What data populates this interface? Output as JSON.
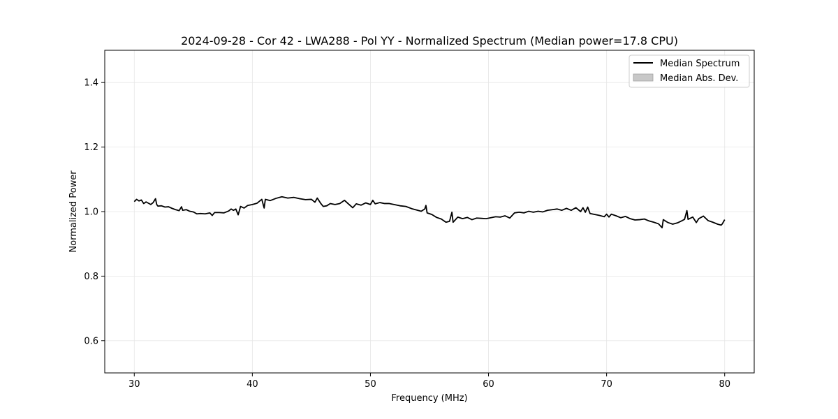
{
  "chart_data": {
    "type": "line",
    "title": "2024-09-28 - Cor 42 - LWA288 - Pol YY - Normalized Spectrum (Median power=17.8 CPU)",
    "xlabel": "Frequency (MHz)",
    "ylabel": "Normalized Power",
    "xlim": [
      27.5,
      82.5
    ],
    "ylim": [
      0.5,
      1.5
    ],
    "x_ticks": [
      30,
      40,
      50,
      60,
      70,
      80
    ],
    "y_ticks": [
      0.6,
      0.8,
      1.0,
      1.2,
      1.4
    ],
    "x_tick_labels": [
      "30",
      "40",
      "50",
      "60",
      "70",
      "80"
    ],
    "y_tick_labels": [
      "0.6",
      "0.8",
      "1.0",
      "1.2",
      "1.4"
    ],
    "grid": true,
    "legend_position": "top-right",
    "legend": [
      {
        "label": "Median Spectrum",
        "kind": "line",
        "color": "#000000"
      },
      {
        "label": "Median Abs. Dev.",
        "kind": "patch",
        "color": "#c8c8c8"
      }
    ],
    "series": [
      {
        "name": "Median Spectrum",
        "color": "#000000",
        "points": [
          [
            30.0,
            1.031
          ],
          [
            30.2,
            1.038
          ],
          [
            30.4,
            1.033
          ],
          [
            30.6,
            1.036
          ],
          [
            30.8,
            1.025
          ],
          [
            31.0,
            1.03
          ],
          [
            31.2,
            1.026
          ],
          [
            31.4,
            1.022
          ],
          [
            31.6,
            1.028
          ],
          [
            31.8,
            1.04
          ],
          [
            31.9,
            1.022
          ],
          [
            32.0,
            1.017
          ],
          [
            32.3,
            1.018
          ],
          [
            32.6,
            1.014
          ],
          [
            32.9,
            1.015
          ],
          [
            33.2,
            1.01
          ],
          [
            33.5,
            1.006
          ],
          [
            33.8,
            1.003
          ],
          [
            34.0,
            1.015
          ],
          [
            34.1,
            1.004
          ],
          [
            34.4,
            1.006
          ],
          [
            34.7,
            1.001
          ],
          [
            35.0,
            0.999
          ],
          [
            35.3,
            0.993
          ],
          [
            35.6,
            0.994
          ],
          [
            36.0,
            0.993
          ],
          [
            36.4,
            0.996
          ],
          [
            36.6,
            0.988
          ],
          [
            36.8,
            0.997
          ],
          [
            37.2,
            0.997
          ],
          [
            37.6,
            0.996
          ],
          [
            38.0,
            1.002
          ],
          [
            38.2,
            1.008
          ],
          [
            38.4,
            1.004
          ],
          [
            38.6,
            1.008
          ],
          [
            38.8,
            0.99
          ],
          [
            39.0,
            1.016
          ],
          [
            39.3,
            1.011
          ],
          [
            39.6,
            1.019
          ],
          [
            40.0,
            1.022
          ],
          [
            40.4,
            1.026
          ],
          [
            40.8,
            1.038
          ],
          [
            41.0,
            1.011
          ],
          [
            41.1,
            1.038
          ],
          [
            41.5,
            1.034
          ],
          [
            42.0,
            1.041
          ],
          [
            42.5,
            1.046
          ],
          [
            43.0,
            1.042
          ],
          [
            43.5,
            1.044
          ],
          [
            44.0,
            1.04
          ],
          [
            44.5,
            1.037
          ],
          [
            45.0,
            1.038
          ],
          [
            45.3,
            1.029
          ],
          [
            45.5,
            1.042
          ],
          [
            45.8,
            1.025
          ],
          [
            46.0,
            1.016
          ],
          [
            46.3,
            1.018
          ],
          [
            46.6,
            1.025
          ],
          [
            47.0,
            1.022
          ],
          [
            47.4,
            1.025
          ],
          [
            47.8,
            1.035
          ],
          [
            48.1,
            1.025
          ],
          [
            48.5,
            1.012
          ],
          [
            48.8,
            1.024
          ],
          [
            49.2,
            1.02
          ],
          [
            49.6,
            1.027
          ],
          [
            50.0,
            1.022
          ],
          [
            50.2,
            1.035
          ],
          [
            50.4,
            1.024
          ],
          [
            50.8,
            1.028
          ],
          [
            51.2,
            1.025
          ],
          [
            51.6,
            1.025
          ],
          [
            52.0,
            1.022
          ],
          [
            52.5,
            1.018
          ],
          [
            53.0,
            1.016
          ],
          [
            53.5,
            1.009
          ],
          [
            54.0,
            1.004
          ],
          [
            54.3,
            1.001
          ],
          [
            54.6,
            1.008
          ],
          [
            54.7,
            1.019
          ],
          [
            54.8,
            0.996
          ],
          [
            55.2,
            0.991
          ],
          [
            55.6,
            0.982
          ],
          [
            56.0,
            0.977
          ],
          [
            56.4,
            0.967
          ],
          [
            56.7,
            0.97
          ],
          [
            56.9,
            0.998
          ],
          [
            57.0,
            0.967
          ],
          [
            57.4,
            0.983
          ],
          [
            57.8,
            0.978
          ],
          [
            58.2,
            0.982
          ],
          [
            58.6,
            0.975
          ],
          [
            59.0,
            0.98
          ],
          [
            59.4,
            0.979
          ],
          [
            59.8,
            0.978
          ],
          [
            60.2,
            0.981
          ],
          [
            60.6,
            0.984
          ],
          [
            61.0,
            0.983
          ],
          [
            61.4,
            0.987
          ],
          [
            61.8,
            0.98
          ],
          [
            62.2,
            0.996
          ],
          [
            62.6,
            0.998
          ],
          [
            63.0,
            0.996
          ],
          [
            63.4,
            1.001
          ],
          [
            63.8,
            0.998
          ],
          [
            64.2,
            1.001
          ],
          [
            64.6,
            0.999
          ],
          [
            65.0,
            1.004
          ],
          [
            65.4,
            1.006
          ],
          [
            65.8,
            1.008
          ],
          [
            66.2,
            1.004
          ],
          [
            66.6,
            1.01
          ],
          [
            67.0,
            1.004
          ],
          [
            67.4,
            1.012
          ],
          [
            67.8,
            1.0
          ],
          [
            68.0,
            1.012
          ],
          [
            68.2,
            0.998
          ],
          [
            68.4,
            1.014
          ],
          [
            68.6,
            0.994
          ],
          [
            69.0,
            0.991
          ],
          [
            69.4,
            0.988
          ],
          [
            69.8,
            0.984
          ],
          [
            70.0,
            0.992
          ],
          [
            70.2,
            0.983
          ],
          [
            70.4,
            0.992
          ],
          [
            70.8,
            0.987
          ],
          [
            71.2,
            0.981
          ],
          [
            71.6,
            0.985
          ],
          [
            72.0,
            0.978
          ],
          [
            72.4,
            0.974
          ],
          [
            72.8,
            0.975
          ],
          [
            73.2,
            0.977
          ],
          [
            73.6,
            0.971
          ],
          [
            74.0,
            0.967
          ],
          [
            74.4,
            0.962
          ],
          [
            74.7,
            0.95
          ],
          [
            74.8,
            0.975
          ],
          [
            75.2,
            0.966
          ],
          [
            75.6,
            0.961
          ],
          [
            76.0,
            0.965
          ],
          [
            76.4,
            0.972
          ],
          [
            76.6,
            0.976
          ],
          [
            76.8,
            1.003
          ],
          [
            76.9,
            0.976
          ],
          [
            77.3,
            0.983
          ],
          [
            77.6,
            0.966
          ],
          [
            77.8,
            0.978
          ],
          [
            78.2,
            0.986
          ],
          [
            78.6,
            0.972
          ],
          [
            79.0,
            0.967
          ],
          [
            79.4,
            0.961
          ],
          [
            79.7,
            0.958
          ],
          [
            79.8,
            0.962
          ],
          [
            80.0,
            0.975
          ]
        ]
      },
      {
        "name": "Median Abs. Dev.",
        "color": "#c8c8c8",
        "points": []
      }
    ]
  }
}
